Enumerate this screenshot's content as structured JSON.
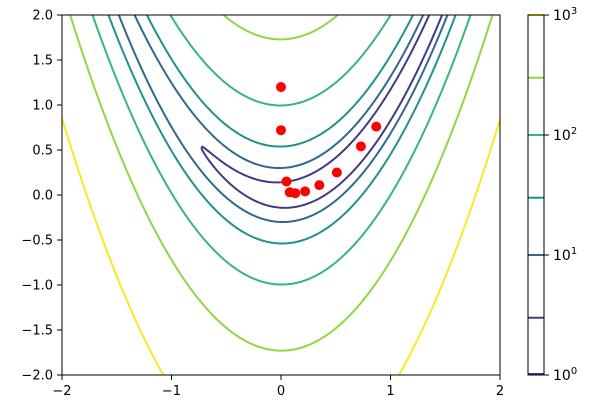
{
  "chart_data": {
    "type": "contour",
    "function": "rosenbrock",
    "xlim": [
      -2,
      2
    ],
    "ylim": [
      -2,
      2
    ],
    "xticks": [
      -2,
      -1,
      0,
      1,
      2
    ],
    "xtick_labels": [
      "−2",
      "−1",
      "0",
      "1",
      "2"
    ],
    "yticks": [
      2.0,
      1.5,
      1.0,
      0.5,
      0.0,
      -0.5,
      -1.0,
      -1.5,
      -2.0
    ],
    "ytick_labels": [
      "2.0",
      "1.5",
      "1.0",
      "0.5",
      "0.0",
      "−0.5",
      "−1.0",
      "−1.5",
      "−2.0"
    ],
    "contour_levels": [
      3,
      10,
      30,
      100,
      300,
      1000
    ],
    "contour_colors": [
      "#443983",
      "#31688e",
      "#21918c",
      "#35b779",
      "#90d743",
      "#fde725"
    ],
    "colorbar": {
      "scale": "log",
      "range": [
        1,
        1000
      ],
      "ticks": [
        {
          "value": 1,
          "base": "10",
          "exp": "0"
        },
        {
          "value": 10,
          "base": "10",
          "exp": "1"
        },
        {
          "value": 100,
          "base": "10",
          "exp": "2"
        },
        {
          "value": 1000,
          "base": "10",
          "exp": "3"
        }
      ]
    },
    "points": {
      "color": "#ff0000",
      "x": [
        0.0,
        0.0,
        0.05,
        0.08,
        0.13,
        0.22,
        0.35,
        0.51,
        0.73,
        0.87
      ],
      "y": [
        1.2,
        0.72,
        0.15,
        0.03,
        0.02,
        0.04,
        0.11,
        0.25,
        0.54,
        0.76
      ]
    }
  }
}
